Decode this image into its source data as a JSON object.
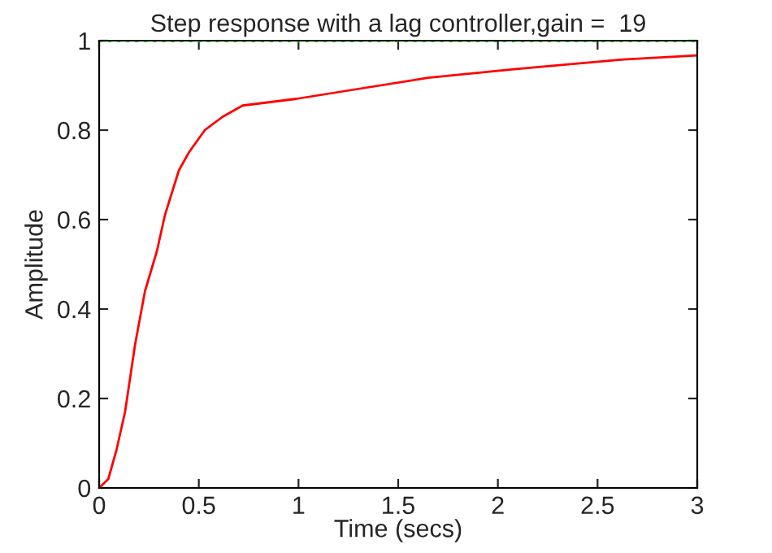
{
  "chart_data": {
    "type": "line",
    "title": "Step response with a lag controller,gain =  19",
    "xlabel": "Time (secs)",
    "ylabel": "Amplitude",
    "x": [
      0,
      0.046,
      0.087,
      0.13,
      0.18,
      0.23,
      0.29,
      0.33,
      0.4,
      0.45,
      0.53,
      0.62,
      0.72,
      0.99,
      1.27,
      1.65,
      2.08,
      2.63,
      3
    ],
    "series": [
      {
        "color": "#ff0000",
        "values": [
          0,
          0.02,
          0.085,
          0.17,
          0.32,
          0.44,
          0.53,
          0.61,
          0.71,
          0.75,
          0.8,
          0.83,
          0.855,
          0.87,
          0.89,
          0.917,
          0.936,
          0.958,
          0.967
        ]
      }
    ],
    "xlim": [
      0,
      3
    ],
    "ylim": [
      0,
      1
    ],
    "xticks": [
      0,
      0.5,
      1,
      1.5,
      2,
      2.5,
      3
    ],
    "yticks": [
      0,
      0.2,
      0.4,
      0.6,
      0.8,
      1
    ],
    "ref_lines": [
      {
        "axis": "y",
        "value": 1,
        "color": "#00ff00",
        "line_style": "dotted"
      }
    ],
    "grid": false,
    "legend": false
  }
}
